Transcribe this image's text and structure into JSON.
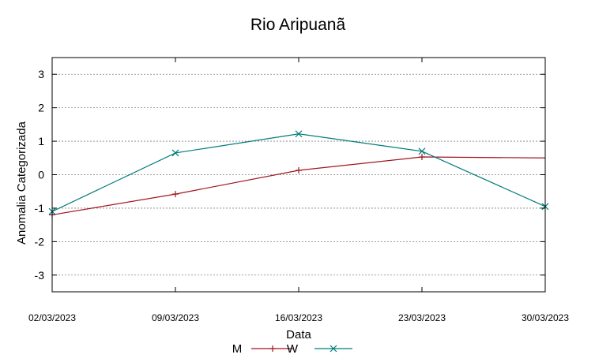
{
  "chart_data": {
    "type": "line",
    "title": "Rio Aripuanã",
    "xlabel": "Data",
    "ylabel": "Anomalia Categorizada",
    "ylim": [
      -3.5,
      3.5
    ],
    "yticks": [
      -3,
      -2,
      -1,
      0,
      1,
      2,
      3
    ],
    "x": [
      "02/03/2023",
      "09/03/2023",
      "16/03/2023",
      "23/03/2023",
      "30/03/2023"
    ],
    "xlim": [
      "02/03/2023",
      "30/03/2023"
    ],
    "grid": true,
    "legend_position": "bottom",
    "series": [
      {
        "name": "M",
        "color": "#a0141e",
        "marker": "plus",
        "x": [
          "02/03/2023",
          "09/03/2023",
          "16/03/2023",
          "23/03/2023"
        ],
        "y": [
          -1.2,
          -0.58,
          0.13,
          0.53
        ],
        "tail": {
          "x": "30/03/2023",
          "y": 0.5
        }
      },
      {
        "name": "W",
        "color": "#007b7b",
        "marker": "x",
        "x": [
          "02/03/2023",
          "09/03/2023",
          "16/03/2023",
          "23/03/2023",
          "30/03/2023"
        ],
        "y": [
          -1.1,
          0.65,
          1.22,
          0.7,
          -0.95
        ]
      }
    ]
  }
}
